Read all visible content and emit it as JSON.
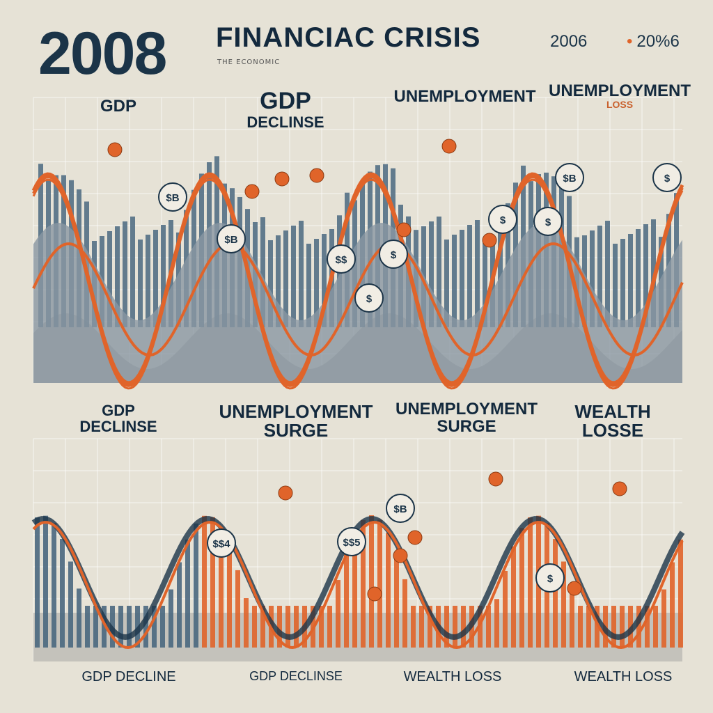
{
  "header": {
    "year": "2008",
    "title": "FINANCIAC CRISIS",
    "subtitle": "THE ECONOMIC",
    "stat_a": "2006",
    "stat_b": "20%6"
  },
  "top_panel": {
    "labels": [
      {
        "line1": "GDP",
        "line2": ""
      },
      {
        "line1": "GDP",
        "line2": "DECLINSE"
      },
      {
        "line1": "UNEMPLOYMENT",
        "line2": ""
      },
      {
        "line1": "UNEMPLOYMENT",
        "line2": "LOSS"
      }
    ],
    "coins": [
      "$B",
      "$B",
      "$",
      "$",
      "$$",
      "$",
      "$",
      "$B",
      "$"
    ]
  },
  "bottom_panel": {
    "labels": [
      {
        "line1": "GDP",
        "line2": "DECLINSE"
      },
      {
        "line1": "UNEMPLOYMENT",
        "line2": "SURGE"
      },
      {
        "line1": "UNEMPLOYMENT",
        "line2": "SURGE"
      },
      {
        "line1": "WEALTH",
        "line2": "LOSSE"
      }
    ],
    "coins": [
      "$$4",
      "$$5",
      "$B",
      "$"
    ],
    "footer_labels": [
      "GDP DECLINE",
      "GDP DECLINSE",
      "WEALTH LOSS",
      "WEALTH LOSS"
    ]
  },
  "colors": {
    "background": "#e6e2d6",
    "navy": "#1b3448",
    "orange": "#e0642a",
    "steel": "#4a6880"
  }
}
